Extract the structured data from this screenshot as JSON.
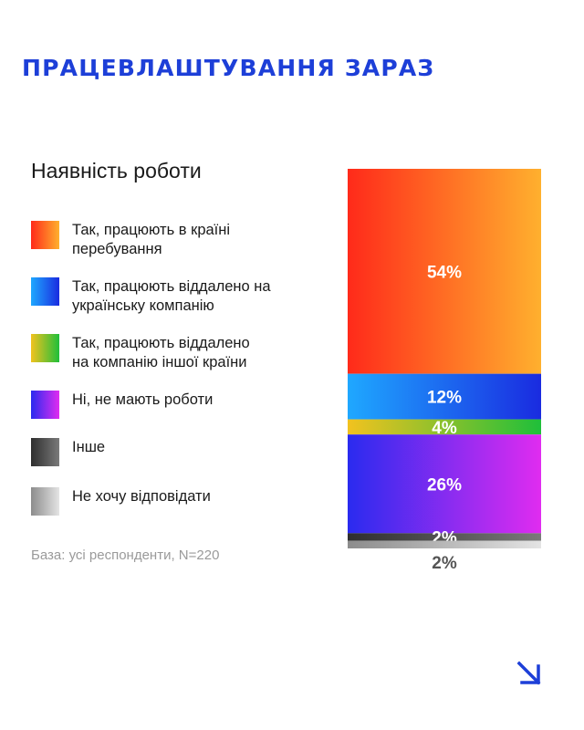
{
  "page": {
    "title": "ПРАЦЕВЛАШТУВАННЯ ЗАРАЗ",
    "subtitle": "Наявність роботи",
    "base_note": "База: усі респонденти, N=220",
    "accent_color": "#1d3fd8"
  },
  "chart_data": {
    "type": "bar",
    "stacked": true,
    "title": "Наявність роботи",
    "categories": [
      "Наявність роботи"
    ],
    "series": [
      {
        "name": "Так, працюють в країні\nперебування",
        "values": [
          54
        ],
        "label": "54%",
        "gradient": [
          "#ff2a1a",
          "#ffb02e"
        ],
        "label_color": "#ffffff"
      },
      {
        "name": "Так, працюють віддалено на\nукраїнську компанію",
        "values": [
          12
        ],
        "label": "12%",
        "gradient": [
          "#1fa8ff",
          "#1a2be0"
        ],
        "label_color": "#ffffff"
      },
      {
        "name": "Так, працюють віддалено\nна компанію іншої країни",
        "values": [
          4
        ],
        "label": "4%",
        "gradient": [
          "#f2c21f",
          "#1fbf3a"
        ],
        "label_color": "#ffffff"
      },
      {
        "name": "Ні, не мають роботи",
        "values": [
          26
        ],
        "label": "26%",
        "gradient": [
          "#2a2bef",
          "#e02cf0"
        ],
        "label_color": "#ffffff"
      },
      {
        "name": "Інше",
        "values": [
          2
        ],
        "label": "2%",
        "gradient": [
          "#2e2e2e",
          "#7a7a7a"
        ],
        "label_color": "#ffffff"
      },
      {
        "name": "Не хочу відповідати",
        "values": [
          2
        ],
        "label": "2%",
        "gradient": [
          "#8c8c8c",
          "#e4e4e4"
        ],
        "label_color": "#555555"
      }
    ]
  }
}
